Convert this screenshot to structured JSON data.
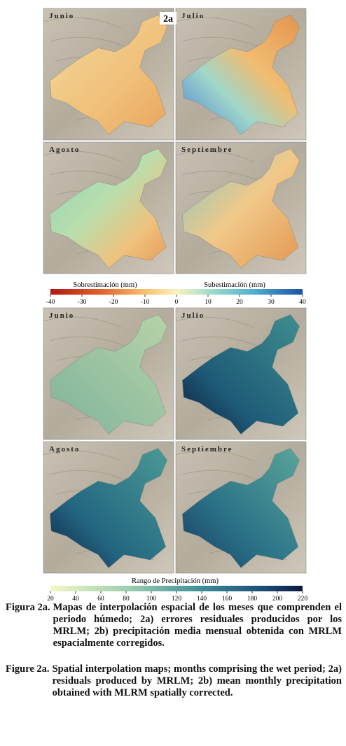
{
  "figure": {
    "tag": "2a",
    "top": {
      "panels": [
        "Junio",
        "Julio",
        "Agosto",
        "Septiembre"
      ],
      "legend": {
        "left": "Sobrestimación (mm)",
        "right": "Subestimación (mm)",
        "lim": [
          -40,
          40
        ],
        "ticks": [
          -40,
          -30,
          -20,
          -10,
          0,
          10,
          20,
          30,
          40
        ]
      }
    },
    "bottom": {
      "panels": [
        "Junio",
        "Julio",
        "Agosto",
        "Septiembre"
      ],
      "legend": {
        "title": "Rango de Precipitación (mm)",
        "lim": [
          20,
          220
        ],
        "ticks": [
          20,
          40,
          60,
          80,
          100,
          120,
          140,
          160,
          180,
          200,
          220
        ]
      }
    }
  },
  "captions": [
    {
      "label": "Figura 2a.",
      "text": "Mapas de interpolación espacial de los meses que comprenden el periodo húmedo; 2a) errores residuales producidos por los MRLM; 2b) precipitación media mensual obtenida con MRLM espacialmente corregidos."
    },
    {
      "label": "Figure 2a.",
      "text": "Spatial interpolation maps; months comprising the wet period; 2a) residuals produced by MRLM; 2b) mean monthly precipitation obtained with MLRM spatially corrected."
    }
  ]
}
